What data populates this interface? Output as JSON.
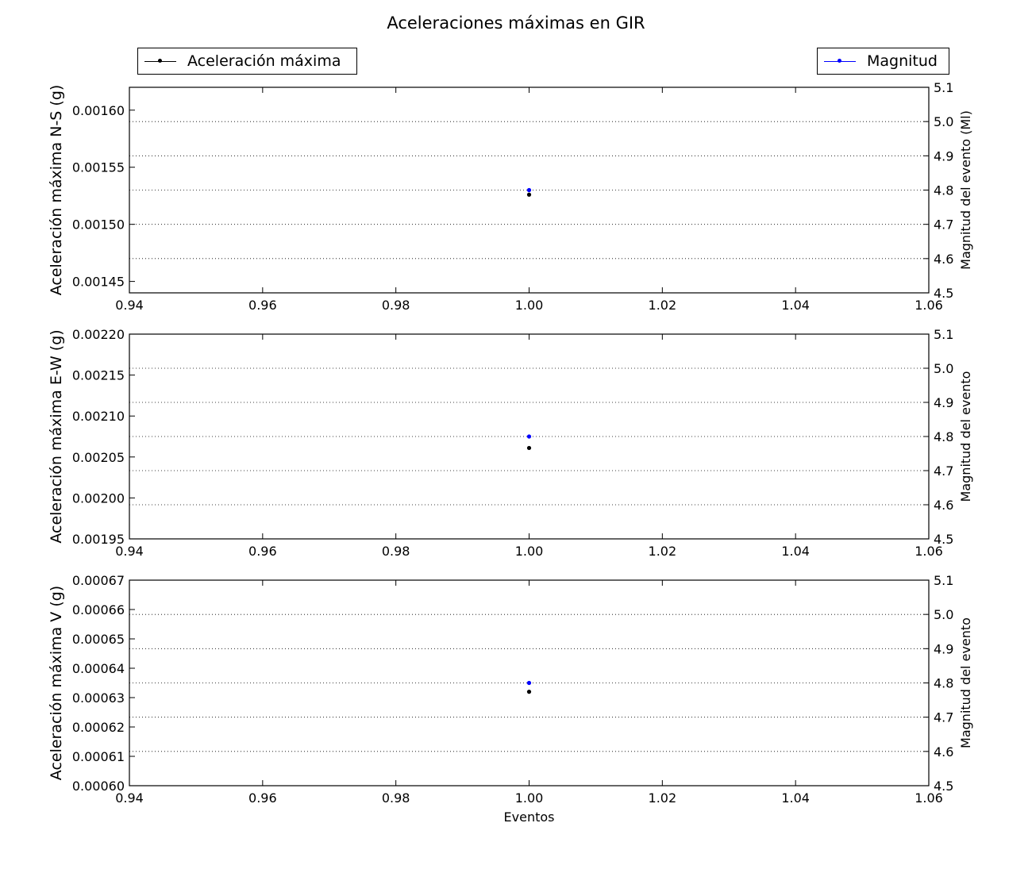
{
  "title": "Aceleraciones máximas en GIR",
  "legend": {
    "left": {
      "label": "Aceleración máxima",
      "color": "#000000",
      "position": "top-left"
    },
    "right": {
      "label": "Magnitud",
      "color": "#0000ff",
      "position": "top-right"
    }
  },
  "chart_data": [
    {
      "type": "scatter",
      "xlabel": "",
      "ylabel": "Aceleración máxima N-S (g)",
      "y2label": "Magnitud del evento (Ml)",
      "xlim": [
        0.94,
        1.06
      ],
      "xticks": [
        "0.94",
        "0.96",
        "0.98",
        "1.00",
        "1.02",
        "1.04",
        "1.06"
      ],
      "ylim": [
        0.00144,
        0.00162
      ],
      "yticks": [
        "0.00145",
        "0.00150",
        "0.00155",
        "0.00160"
      ],
      "y2lim": [
        4.5,
        5.1
      ],
      "y2ticks": [
        "4.5",
        "4.6",
        "4.7",
        "4.8",
        "4.9",
        "5.0",
        "5.1"
      ],
      "grid": "dotted horizontal",
      "series": [
        {
          "name": "Aceleración máxima",
          "axis": "left",
          "color": "#000000",
          "x": [
            1.0
          ],
          "y": [
            0.001526
          ]
        },
        {
          "name": "Magnitud",
          "axis": "right",
          "color": "#0000ff",
          "x": [
            1.0
          ],
          "y": [
            4.8
          ]
        }
      ]
    },
    {
      "type": "scatter",
      "xlabel": "",
      "ylabel": "Aceleración máxima E-W (g)",
      "y2label": "Magnitud del evento",
      "xlim": [
        0.94,
        1.06
      ],
      "xticks": [
        "0.94",
        "0.96",
        "0.98",
        "1.00",
        "1.02",
        "1.04",
        "1.06"
      ],
      "ylim": [
        0.00195,
        0.0022
      ],
      "yticks": [
        "0.00195",
        "0.00200",
        "0.00205",
        "0.00210",
        "0.00215",
        "0.00220"
      ],
      "y2lim": [
        4.5,
        5.1
      ],
      "y2ticks": [
        "4.5",
        "4.6",
        "4.7",
        "4.8",
        "4.9",
        "5.0",
        "5.1"
      ],
      "grid": "dotted horizontal",
      "series": [
        {
          "name": "Aceleración máxima",
          "axis": "left",
          "color": "#000000",
          "x": [
            1.0
          ],
          "y": [
            0.002061
          ]
        },
        {
          "name": "Magnitud",
          "axis": "right",
          "color": "#0000ff",
          "x": [
            1.0
          ],
          "y": [
            4.8
          ]
        }
      ]
    },
    {
      "type": "scatter",
      "xlabel": "Eventos",
      "ylabel": "Aceleración máxima V (g)",
      "y2label": "Magnitud del evento",
      "xlim": [
        0.94,
        1.06
      ],
      "xticks": [
        "0.94",
        "0.96",
        "0.98",
        "1.00",
        "1.02",
        "1.04",
        "1.06"
      ],
      "ylim": [
        0.0006,
        0.00067
      ],
      "yticks": [
        "0.00060",
        "0.00061",
        "0.00062",
        "0.00063",
        "0.00064",
        "0.00065",
        "0.00066",
        "0.00067"
      ],
      "y2lim": [
        4.5,
        5.1
      ],
      "y2ticks": [
        "4.5",
        "4.6",
        "4.7",
        "4.8",
        "4.9",
        "5.0",
        "5.1"
      ],
      "grid": "dotted horizontal",
      "series": [
        {
          "name": "Aceleración máxima",
          "axis": "left",
          "color": "#000000",
          "x": [
            1.0
          ],
          "y": [
            0.000632
          ]
        },
        {
          "name": "Magnitud",
          "axis": "right",
          "color": "#0000ff",
          "x": [
            1.0
          ],
          "y": [
            4.8
          ]
        }
      ]
    }
  ]
}
